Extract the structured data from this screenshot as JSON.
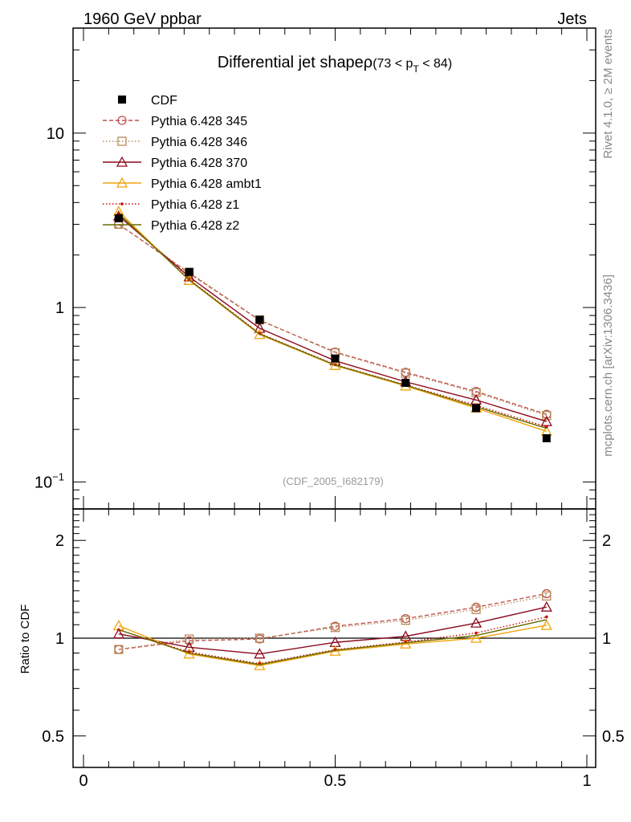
{
  "header": {
    "left": "1960 GeV ppbar",
    "right": "Jets"
  },
  "side_labels": {
    "top": "Rivet 4.1.0, ≥ 2M events",
    "bottom": "mcplots.cern.ch [arXiv:1306.3436]"
  },
  "chart_data": {
    "type": "line",
    "title": "Differential jet shapeρ",
    "title_cut": {
      "open": "(73 < p",
      "sub": "T",
      "close": " < 84)"
    },
    "analysis_id": "(CDF_2005_I682179)",
    "xlabel": "",
    "ylabel_top": "",
    "ylabel_ratio": "Ratio to CDF",
    "xlim": [
      0,
      1
    ],
    "ylim_top": [
      0.07,
      40
    ],
    "ylim_ratio": [
      0.4,
      2.5
    ],
    "yscale": "log",
    "x": [
      0.07,
      0.21,
      0.35,
      0.5,
      0.64,
      0.78,
      0.92
    ],
    "x_ticks": [
      "0",
      "0.5",
      "1"
    ],
    "y_ticks_top": [
      {
        "base": "10",
        "exp": "−1",
        "value": 0.1
      },
      {
        "base": "1",
        "exp": "",
        "value": 1
      },
      {
        "base": "10",
        "exp": "",
        "value": 10
      }
    ],
    "y_ticks_ratio": [
      {
        "label": "0.5",
        "value": 0.5
      },
      {
        "label": "1",
        "value": 1
      },
      {
        "label": "2",
        "value": 2
      }
    ],
    "series": [
      {
        "name": "CDF",
        "color": "#000000",
        "line": "none",
        "marker": "filled-square",
        "values": [
          3.25,
          1.6,
          0.85,
          0.51,
          0.37,
          0.265,
          0.178
        ]
      },
      {
        "name": "Pythia 6.428 345",
        "color": "#c0504d",
        "line": "dashed",
        "marker": "circle",
        "values": [
          3.0,
          1.57,
          0.845,
          0.555,
          0.425,
          0.33,
          0.244
        ]
      },
      {
        "name": "Pythia 6.428 346",
        "color": "#b58a55",
        "line": "dotted",
        "marker": "square",
        "values": [
          3.0,
          1.59,
          0.85,
          0.55,
          0.42,
          0.325,
          0.24
        ]
      },
      {
        "name": "Pythia 6.428 370",
        "color": "#8b0a1e",
        "line": "solid",
        "marker": "triangle",
        "values": [
          3.35,
          1.5,
          0.76,
          0.495,
          0.375,
          0.295,
          0.222
        ]
      },
      {
        "name": "Pythia 6.428 ambt1",
        "color": "#f0a30a",
        "line": "solid",
        "marker": "triangle",
        "values": [
          3.55,
          1.43,
          0.7,
          0.465,
          0.355,
          0.265,
          0.195
        ]
      },
      {
        "name": "Pythia 6.428 z1",
        "color": "#cc0000",
        "line": "dotted",
        "marker": "small-dot",
        "values": [
          3.45,
          1.45,
          0.71,
          0.47,
          0.36,
          0.275,
          0.207
        ]
      },
      {
        "name": "Pythia 6.428 z2",
        "color": "#6b6b00",
        "line": "solid",
        "marker": "none",
        "values": [
          3.45,
          1.44,
          0.705,
          0.468,
          0.358,
          0.27,
          0.203
        ]
      }
    ]
  }
}
